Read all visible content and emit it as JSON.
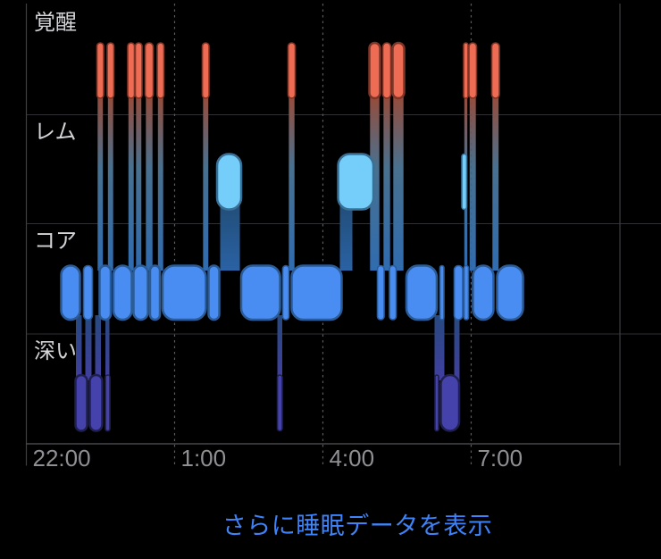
{
  "page": {
    "background": "#000000"
  },
  "footer": {
    "more_link_label": "さらに睡眠データを表示",
    "more_link_color": "#3E83F8"
  },
  "chart_data": {
    "type": "bar",
    "subtype": "sleep-stage-hypnogram",
    "title": "",
    "x_axis": {
      "unit": "hours_after_22:00",
      "range": [
        0,
        12.01
      ],
      "ticks": [
        {
          "hour": 0,
          "label": "22:00",
          "style": "solid"
        },
        {
          "hour": 3,
          "label": "1:00",
          "style": "dashed"
        },
        {
          "hour": 6,
          "label": "4:00",
          "style": "dashed"
        },
        {
          "hour": 9,
          "label": "7:00",
          "style": "dashed"
        },
        {
          "hour": 12.01,
          "label": "",
          "style": "solid"
        }
      ]
    },
    "stages": [
      {
        "id": "awake",
        "label": "覚醒",
        "color": "#EE6C54",
        "stroke": "#7E3526",
        "segments": [
          [
            1.428,
            1.563
          ],
          [
            1.636,
            1.771
          ],
          [
            2.051,
            2.187
          ],
          [
            2.205,
            2.341
          ],
          [
            2.404,
            2.567
          ],
          [
            2.648,
            2.783
          ],
          [
            3.561,
            3.696
          ],
          [
            5.296,
            5.44
          ],
          [
            6.94,
            7.157
          ],
          [
            7.212,
            7.374
          ],
          [
            7.41,
            7.645
          ],
          [
            8.847,
            8.937
          ],
          [
            8.955,
            9.109
          ],
          [
            9.416,
            9.57
          ]
        ]
      },
      {
        "id": "rem",
        "label": "レム",
        "color": "#75CEF9",
        "stroke": "#3A7096",
        "segments": [
          [
            3.859,
            4.347
          ],
          [
            6.308,
            7.022
          ],
          [
            8.811,
            8.91
          ]
        ]
      },
      {
        "id": "core",
        "label": "コア",
        "color": "#4A8DF2",
        "stroke": "#2B5C97",
        "segments": [
          [
            0.705,
            1.084
          ],
          [
            1.157,
            1.337
          ],
          [
            1.482,
            1.708
          ],
          [
            1.762,
            2.133
          ],
          [
            2.169,
            2.458
          ],
          [
            2.503,
            2.702
          ],
          [
            2.756,
            3.632
          ],
          [
            3.687,
            3.904
          ],
          [
            4.347,
            5.133
          ],
          [
            5.187,
            5.313
          ],
          [
            5.368,
            6.38
          ],
          [
            7.103,
            7.239
          ],
          [
            7.347,
            7.483
          ],
          [
            7.69,
            8.304
          ],
          [
            8.368,
            8.449
          ],
          [
            8.657,
            8.829
          ],
          [
            8.856,
            8.946
          ],
          [
            9.037,
            9.452
          ],
          [
            9.525,
            10.049
          ]
        ]
      },
      {
        "id": "deep",
        "label": "深い",
        "color": "#4543AB",
        "stroke": "#20204F",
        "segments": [
          [
            0.994,
            1.229
          ],
          [
            1.283,
            1.536
          ],
          [
            1.6,
            1.69
          ],
          [
            5.079,
            5.178
          ],
          [
            8.268,
            8.341
          ],
          [
            8.386,
            8.757
          ]
        ]
      }
    ],
    "connectors": {
      "rem_to_core": [
        [
          3.922,
          4.32
        ],
        [
          6.344,
          6.597
        ]
      ],
      "core_to_deep": [
        [
          1.003,
          1.12
        ],
        [
          1.193,
          1.319
        ],
        [
          1.392,
          1.509
        ],
        [
          1.6,
          1.681
        ],
        [
          5.079,
          5.178
        ],
        [
          8.259,
          8.458
        ],
        [
          8.657,
          8.765
        ]
      ]
    },
    "layout_hints": {
      "legend": "none",
      "grid": "horizontal solid row separators + dashed vertical time gridlines",
      "stage_label_color": "#D4D4D8",
      "tick_label_color": "#8F8F94",
      "separator_color": "#303034",
      "dashed_line_color": "#5C5C60",
      "axis_line_color": "#55555A"
    }
  }
}
